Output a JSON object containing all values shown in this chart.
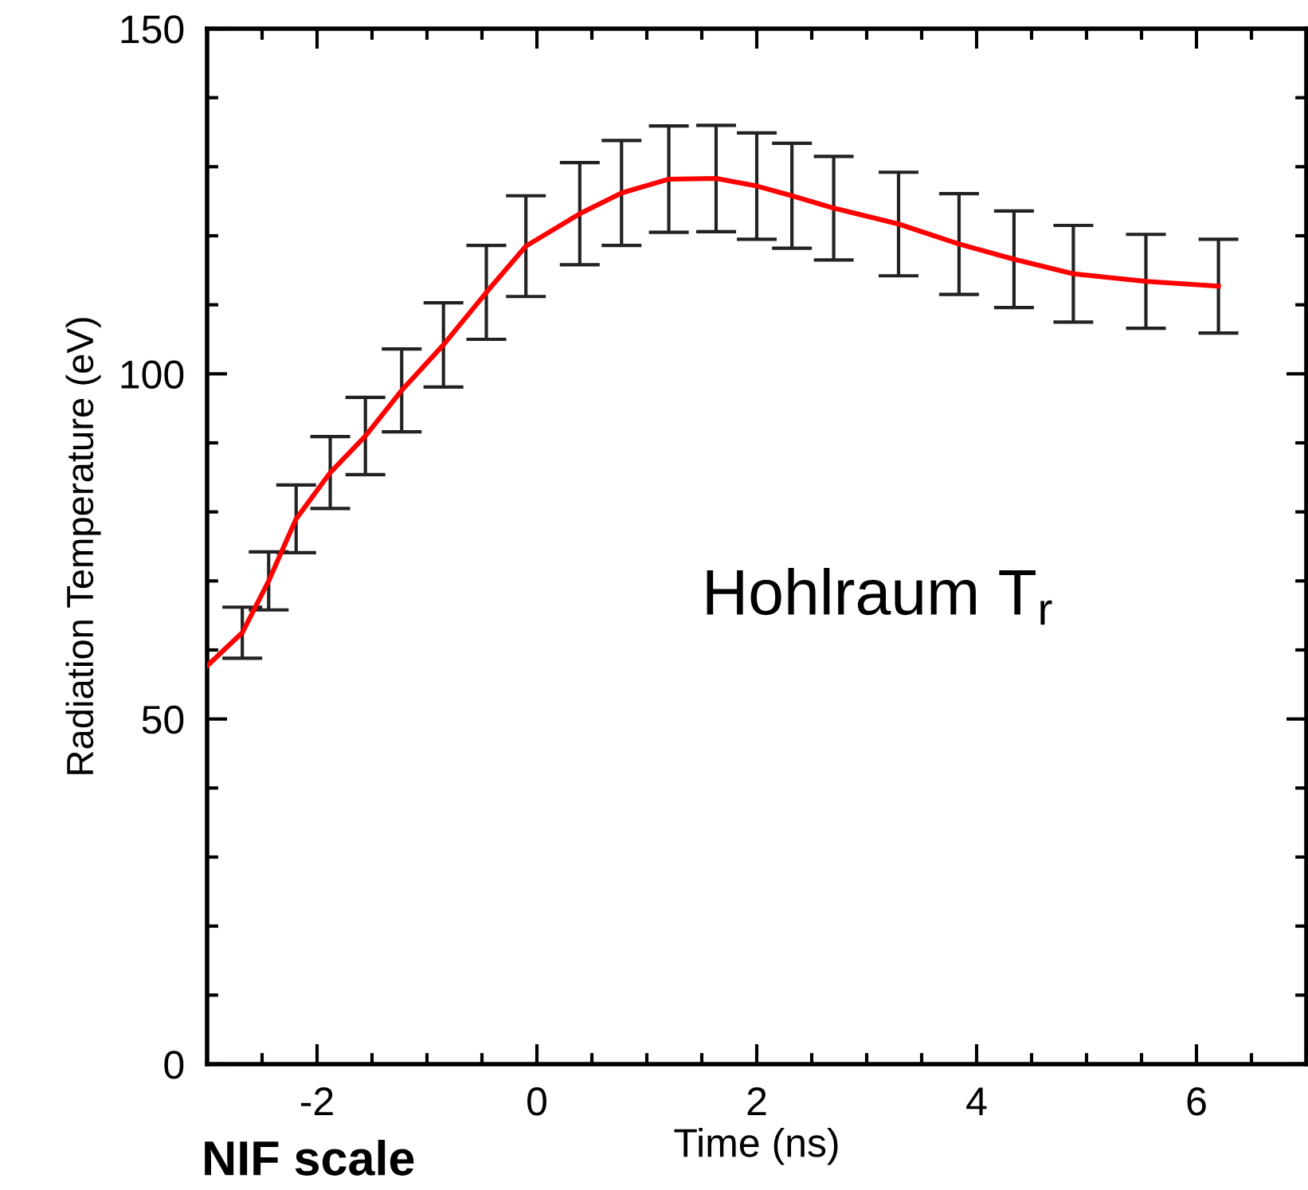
{
  "chart_data": {
    "type": "line",
    "xlabel": "Time (ns)",
    "ylabel": "Radiation Temperature (eV)",
    "annotations": [
      "Hohlraum T$_{r}$",
      "NIF scale"
    ],
    "xlim": [
      -3,
      7
    ],
    "xticks": [
      -2,
      0,
      2,
      4,
      6
    ],
    "ylim": [
      0,
      150
    ],
    "yticks": [
      0,
      50,
      100,
      150
    ],
    "grid": false,
    "marker": "none",
    "line_style": "solid",
    "series": [
      {
        "color": "#ff0000",
        "x": [
          -3,
          -2.68,
          -2.44,
          -2.19,
          -1.88,
          -1.56,
          -1.23,
          -0.85,
          -0.46,
          -0.1,
          0.39,
          0.77,
          1.2,
          1.63,
          2.0,
          2.32,
          2.7,
          3.29,
          3.84,
          4.34,
          4.88,
          5.54,
          6.2
        ],
        "values": [
          57.7,
          62.5,
          70,
          79,
          85.7,
          91,
          97.6,
          104.2,
          111.8,
          118.5,
          123.2,
          126.2,
          128.2,
          128.3,
          127.2,
          125.8,
          124,
          121.7,
          118.8,
          116.6,
          114.5,
          113.4,
          112.7
        ],
        "errors": [
          null,
          3.7,
          4.2,
          4.9,
          5.2,
          5.6,
          6,
          6.1,
          6.8,
          7.3,
          7.4,
          7.6,
          7.7,
          7.7,
          7.7,
          7.6,
          7.5,
          7.5,
          7.3,
          7,
          7,
          6.8,
          6.8
        ]
      }
    ]
  }
}
